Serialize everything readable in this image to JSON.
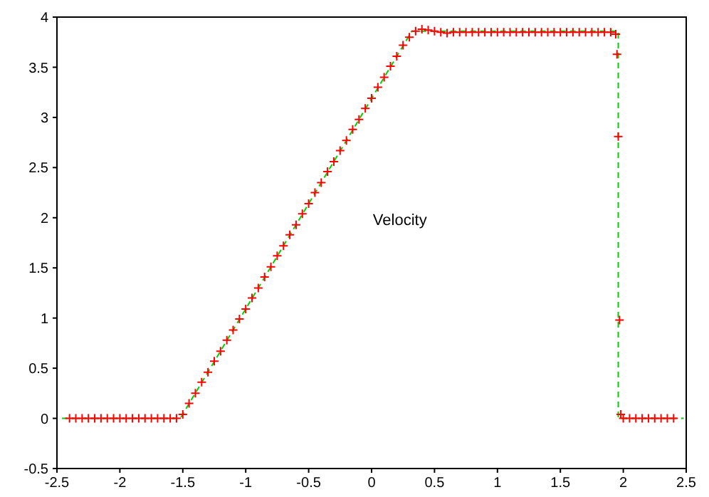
{
  "chart_data": {
    "type": "line",
    "annotations": [
      "Velocity"
    ],
    "xlim": [
      -2.5,
      2.5
    ],
    "xticks": [
      -2.5,
      -2,
      -1.5,
      -1,
      -0.5,
      0,
      0.5,
      1,
      1.5,
      2,
      2.5
    ],
    "ylim": [
      -0.5,
      4
    ],
    "yticks": [
      -0.5,
      0,
      0.5,
      1,
      1.5,
      2,
      2.5,
      3,
      3.5,
      4
    ],
    "grid": false,
    "series": [
      {
        "color": "#00d000",
        "line_style": "dashed",
        "marker": "none",
        "x": [
          -2.46,
          -1.52,
          0.32,
          1.96,
          1.96,
          2.48
        ],
        "values": [
          0,
          0,
          3.86,
          3.86,
          0,
          0
        ]
      },
      {
        "type": "scatter",
        "color": "#ff0000",
        "marker": "cross",
        "x": [
          -2.4,
          -2.35,
          -2.3,
          -2.25,
          -2.2,
          -2.15,
          -2.1,
          -2.05,
          -2,
          -1.95,
          -1.9,
          -1.85,
          -1.8,
          -1.75,
          -1.7,
          -1.65,
          -1.6,
          -1.55,
          -1.5,
          -1.45,
          -1.4,
          -1.35,
          -1.3,
          -1.25,
          -1.2,
          -1.15,
          -1.1,
          -1.05,
          -1,
          -0.95,
          -0.9,
          -0.85,
          -0.8,
          -0.75,
          -0.7,
          -0.65,
          -0.6,
          -0.55,
          -0.5,
          -0.45,
          -0.4,
          -0.35,
          -0.3,
          -0.25,
          -0.2,
          -0.15,
          -0.1,
          -0.05,
          0,
          0.05,
          0.1,
          0.15,
          0.2,
          0.25,
          0.3,
          0.35,
          0.4,
          0.45,
          0.5,
          0.55,
          0.6,
          0.65,
          0.7,
          0.75,
          0.8,
          0.85,
          0.9,
          0.95,
          1,
          1.05,
          1.1,
          1.15,
          1.2,
          1.25,
          1.3,
          1.35,
          1.4,
          1.45,
          1.5,
          1.55,
          1.6,
          1.65,
          1.7,
          1.75,
          1.8,
          1.85,
          1.9,
          1.94,
          1.95,
          1.96,
          1.97,
          1.98,
          2,
          2.05,
          2.1,
          2.15,
          2.2,
          2.25,
          2.3,
          2.35,
          2.4
        ],
        "values": [
          0,
          0,
          0,
          0,
          0,
          0,
          0,
          0,
          0,
          0,
          0,
          0,
          0,
          0,
          0,
          0,
          0,
          0,
          0.04,
          0.15,
          0.25,
          0.36,
          0.46,
          0.57,
          0.67,
          0.78,
          0.88,
          0.99,
          1.09,
          1.2,
          1.3,
          1.41,
          1.51,
          1.62,
          1.72,
          1.83,
          1.93,
          2.04,
          2.14,
          2.25,
          2.35,
          2.46,
          2.56,
          2.67,
          2.77,
          2.88,
          2.98,
          3.09,
          3.19,
          3.3,
          3.4,
          3.51,
          3.61,
          3.72,
          3.8,
          3.86,
          3.88,
          3.87,
          3.86,
          3.85,
          3.84,
          3.85,
          3.85,
          3.85,
          3.85,
          3.85,
          3.85,
          3.85,
          3.85,
          3.85,
          3.85,
          3.85,
          3.85,
          3.85,
          3.85,
          3.85,
          3.85,
          3.85,
          3.85,
          3.85,
          3.85,
          3.85,
          3.85,
          3.85,
          3.85,
          3.85,
          3.85,
          3.83,
          3.63,
          2.81,
          0.98,
          0.04,
          0,
          0,
          0,
          0,
          0,
          0,
          0,
          0,
          0
        ]
      }
    ]
  }
}
